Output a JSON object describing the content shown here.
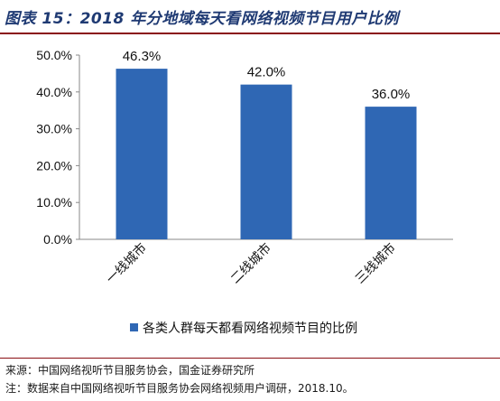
{
  "figure": {
    "title": "图表 15：2018 年分地域每天看网络视频节目用户比例",
    "source": "来源：中国网络视听节目服务协会，国金证券研究所",
    "note": "注：数据来自中国网络视听节目服务协会网络视频用户调研，2018.10。"
  },
  "chart_data": {
    "type": "bar",
    "title": "",
    "xlabel": "",
    "ylabel": "",
    "categories": [
      "一线城市",
      "二线城市",
      "三线城市"
    ],
    "series": [
      {
        "name": "各类人群每天都看网络视频节目的比例",
        "values": [
          46.3,
          42.0,
          36.0
        ],
        "labels": [
          "46.3%",
          "42.0%",
          "36.0%"
        ],
        "color": "#2f67b4"
      }
    ],
    "yticks": [
      "0.0%",
      "10.0%",
      "20.0%",
      "30.0%",
      "40.0%",
      "50.0%"
    ],
    "ylim": [
      0,
      50
    ],
    "grid": false,
    "legend": "bottom"
  }
}
